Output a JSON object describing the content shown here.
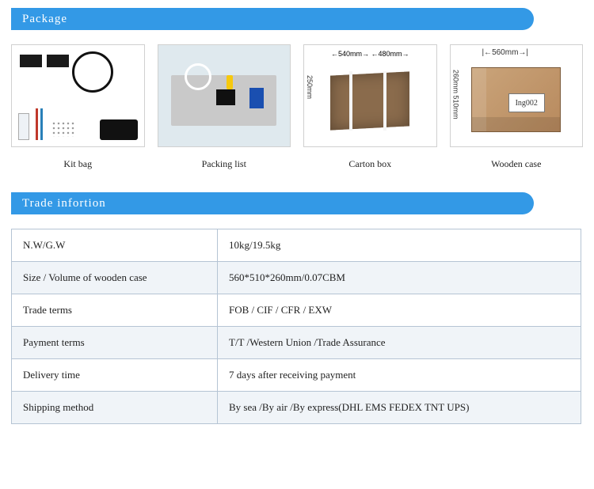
{
  "sections": {
    "package": "Package",
    "trade": "Trade infortion"
  },
  "gallery": [
    {
      "caption": "Kit bag"
    },
    {
      "caption": "Packing list"
    },
    {
      "caption": "Carton box",
      "dim_w": "540mm",
      "dim_d": "480mm",
      "dim_h": "250mm"
    },
    {
      "caption": "Wooden case",
      "dim_w": "560mm",
      "dim_d": "260mm",
      "dim_h": "510mm",
      "label": "Ing002"
    }
  ],
  "trade_rows": [
    {
      "k": "N.W/G.W",
      "v": "10kg/19.5kg"
    },
    {
      "k": "Size / Volume of wooden case",
      "v": " 560*510*260mm/0.07CBM"
    },
    {
      "k": "Trade terms",
      "v": "FOB / CIF / CFR / EXW"
    },
    {
      "k": "Payment terms",
      "v": "T/T /Western Union /Trade Assurance"
    },
    {
      "k": "Delivery time",
      "v": "7 days after receiving payment"
    },
    {
      "k": "Shipping method",
      "v": " By sea /By air /By express(DHL EMS FEDEX TNT UPS)"
    }
  ],
  "colors": {
    "header_bg": "#3399e6",
    "border": "#b5c4d4",
    "row_alt": "#f0f4f8"
  }
}
